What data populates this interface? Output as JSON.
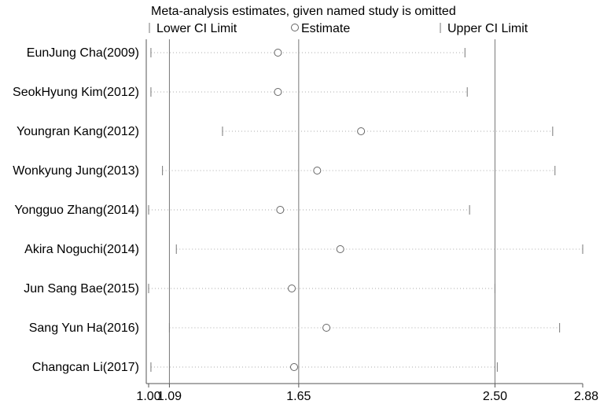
{
  "chart_data": {
    "type": "scatter",
    "title": "Meta-analysis estimates, given named study is omitted",
    "legend": {
      "placement": "top",
      "entries": [
        {
          "label": "Lower CI Limit",
          "marker": "tick"
        },
        {
          "label": "Estimate",
          "marker": "circle"
        },
        {
          "label": "Upper CI Limit",
          "marker": "tick"
        }
      ]
    },
    "xlim": [
      1.0,
      2.88
    ],
    "x_ticks": [
      {
        "value": 1.0,
        "label": "1.00"
      },
      {
        "value": 1.09,
        "label": "1.09"
      },
      {
        "value": 1.65,
        "label": "1.65"
      },
      {
        "value": 2.5,
        "label": "2.50"
      },
      {
        "value": 2.88,
        "label": "2.88"
      }
    ],
    "reference_lines": [
      1.09,
      1.65,
      2.5
    ],
    "studies": [
      {
        "name": "EunJung Cha(2009)",
        "lower": 1.01,
        "estimate": 1.56,
        "upper": 2.37
      },
      {
        "name": "SeokHyung Kim(2012)",
        "lower": 1.01,
        "estimate": 1.56,
        "upper": 2.38
      },
      {
        "name": "Youngran Kang(2012)",
        "lower": 1.32,
        "estimate": 1.92,
        "upper": 2.75
      },
      {
        "name": "Wonkyung Jung(2013)",
        "lower": 1.06,
        "estimate": 1.73,
        "upper": 2.76
      },
      {
        "name": "Yongguo Zhang(2014)",
        "lower": 1.0,
        "estimate": 1.57,
        "upper": 2.39
      },
      {
        "name": "Akira Noguchi(2014)",
        "lower": 1.12,
        "estimate": 1.83,
        "upper": 2.88
      },
      {
        "name": "Jun Sang Bae(2015)",
        "lower": 1.0,
        "estimate": 1.62,
        "upper": 2.5
      },
      {
        "name": "Sang Yun Ha(2016)",
        "lower": 1.09,
        "estimate": 1.77,
        "upper": 2.78
      },
      {
        "name": "Changcan Li(2017)",
        "lower": 1.01,
        "estimate": 1.63,
        "upper": 2.51
      }
    ]
  }
}
